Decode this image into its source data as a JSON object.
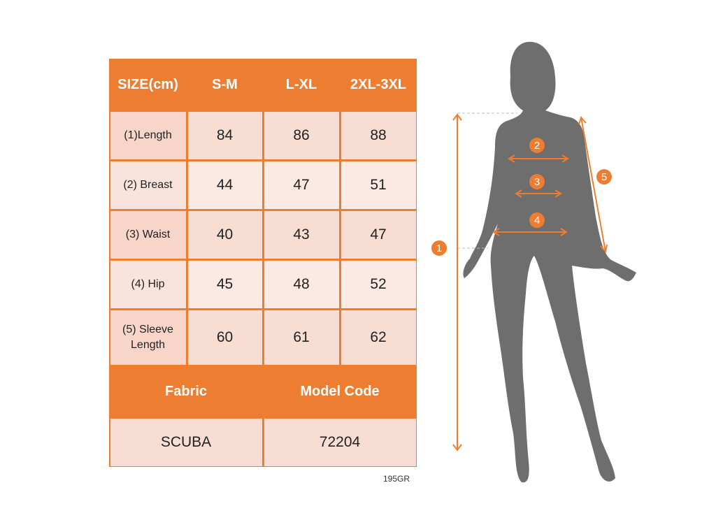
{
  "table": {
    "header": [
      "SIZE\n(cm)",
      "S-M",
      "L-XL",
      "2XL-3XL"
    ],
    "header_size_line1": "SIZE",
    "header_size_line2": "(cm)",
    "rows": [
      {
        "label": "(1)Length",
        "values": [
          "84",
          "86",
          "88"
        ]
      },
      {
        "label": "(2) Breast",
        "values": [
          "44",
          "47",
          "51"
        ]
      },
      {
        "label": "(3) Waist",
        "values": [
          "40",
          "43",
          "47"
        ]
      },
      {
        "label": "(4) Hip",
        "values": [
          "45",
          "48",
          "52"
        ]
      },
      {
        "label": "(5) Sleeve Length",
        "values": [
          "60",
          "61",
          "62"
        ]
      }
    ],
    "footer_headers": [
      "Fabric",
      "Model Code"
    ],
    "footer_values": [
      "SCUBA",
      "72204"
    ]
  },
  "code_note": "195GR",
  "figure": {
    "markers": [
      "1",
      "2",
      "3",
      "4",
      "5"
    ]
  },
  "colors": {
    "accent": "#ED7D31",
    "row_dark": "#F7D5C9",
    "row_light": "#FBE9E3",
    "silhouette": "#6E6E6E"
  }
}
